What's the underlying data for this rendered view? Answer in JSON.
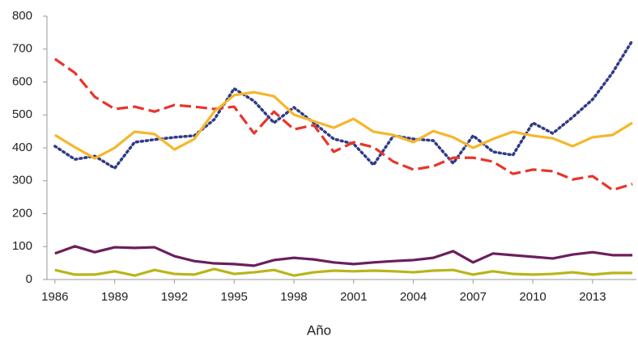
{
  "chart_data": {
    "type": "line",
    "x_label": "Año",
    "x": [
      1986,
      1987,
      1988,
      1989,
      1990,
      1991,
      1992,
      1993,
      1994,
      1995,
      1996,
      1997,
      1998,
      1999,
      2000,
      2001,
      2002,
      2003,
      2004,
      2005,
      2006,
      2007,
      2008,
      2009,
      2010,
      2011,
      2012,
      2013,
      2014,
      2015
    ],
    "xlim": [
      1985.6,
      2015.2
    ],
    "xticks": [
      1986,
      1989,
      1992,
      1995,
      1998,
      2001,
      2004,
      2007,
      2010,
      2013
    ],
    "ylim": [
      0,
      800
    ],
    "yticks": [
      0,
      100,
      200,
      300,
      400,
      500,
      600,
      700,
      800
    ],
    "series": [
      {
        "color": "#2e3a87",
        "dash": "dotted",
        "values": [
          405,
          365,
          375,
          338,
          417,
          425,
          432,
          437,
          486,
          580,
          542,
          476,
          523,
          476,
          427,
          412,
          348,
          437,
          427,
          422,
          353,
          437,
          388,
          378,
          476,
          444,
          493,
          547,
          628,
          726
        ]
      },
      {
        "color": "#e8352a",
        "dash": "dashed",
        "values": [
          670,
          628,
          555,
          518,
          525,
          510,
          530,
          525,
          518,
          525,
          444,
          510,
          456,
          469,
          388,
          417,
          402,
          358,
          334,
          344,
          370,
          370,
          358,
          321,
          334,
          329,
          304,
          314,
          272,
          290
        ]
      },
      {
        "color": "#f5b72a",
        "dash": "solid",
        "values": [
          439,
          402,
          368,
          400,
          449,
          442,
          395,
          427,
          510,
          560,
          569,
          557,
          501,
          481,
          461,
          488,
          449,
          439,
          417,
          451,
          432,
          400,
          427,
          449,
          437,
          429,
          405,
          432,
          439,
          476
        ]
      },
      {
        "color": "#6b1f5c",
        "dash": "solid",
        "values": [
          79,
          101,
          83,
          98,
          96,
          98,
          71,
          56,
          49,
          47,
          42,
          59,
          66,
          61,
          52,
          47,
          52,
          56,
          59,
          66,
          86,
          52,
          79,
          74,
          69,
          64,
          76,
          83,
          74,
          74
        ]
      },
      {
        "color": "#b8b51a",
        "dash": "solid",
        "values": [
          29,
          15,
          15,
          25,
          12,
          29,
          17,
          15,
          32,
          17,
          22,
          29,
          12,
          22,
          27,
          25,
          27,
          25,
          22,
          27,
          29,
          15,
          25,
          17,
          15,
          17,
          22,
          15,
          20,
          20
        ]
      }
    ]
  }
}
